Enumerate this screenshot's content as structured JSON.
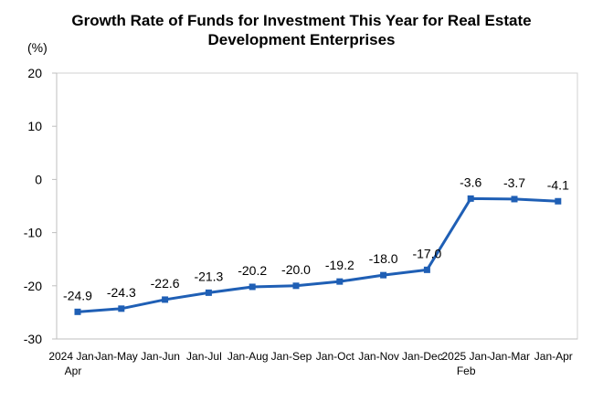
{
  "chart_data": {
    "type": "line",
    "title": "Growth Rate of Funds for Investment This Year for Real Estate\nDevelopment Enterprises",
    "ylabel": "(%)",
    "xlabel": "",
    "ylim": [
      -30,
      20
    ],
    "yticks": [
      "20",
      "10",
      "0",
      "-10",
      "-20",
      "-30"
    ],
    "ytick_values": [
      20,
      10,
      0,
      -10,
      -20,
      -30
    ],
    "categories": [
      [
        "2024 Jan-",
        "Apr"
      ],
      [
        "Jan-May"
      ],
      [
        "Jan-Jun"
      ],
      [
        "Jan-Jul"
      ],
      [
        "Jan-Aug"
      ],
      [
        "Jan-Sep"
      ],
      [
        "Jan-Oct"
      ],
      [
        "Jan-Nov"
      ],
      [
        "Jan-Dec"
      ],
      [
        "2025 Jan-",
        "Feb"
      ],
      [
        "Jan-Mar"
      ],
      [
        "Jan-Apr"
      ]
    ],
    "values": [
      -24.9,
      -24.3,
      -22.6,
      -21.3,
      -20.2,
      -20.0,
      -19.2,
      -18.0,
      -17.0,
      -3.6,
      -3.7,
      -4.1
    ],
    "data_labels": [
      "-24.9",
      "-24.3",
      "-22.6",
      "-21.3",
      "-20.2",
      "-20.0",
      "-19.2",
      "-18.0",
      "-17.0",
      "-3.6",
      "-3.7",
      "-4.1"
    ],
    "line_color": "#1f5fb5",
    "grid": false,
    "legend": "none"
  }
}
